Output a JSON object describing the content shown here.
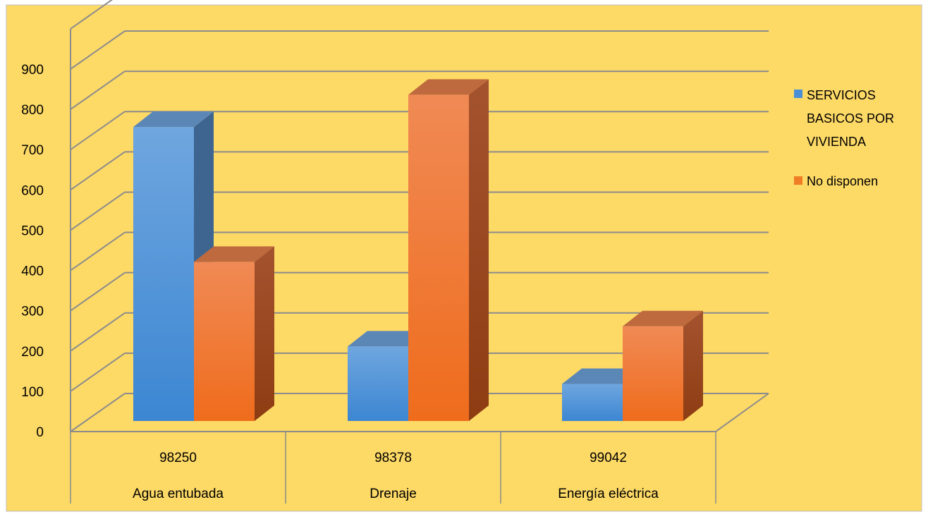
{
  "chart_data": {
    "type": "bar",
    "style": "3d-clustered-column",
    "title": "",
    "xlabel": "",
    "ylabel": "",
    "ylim": [
      0,
      900
    ],
    "yticks": [
      0,
      100,
      200,
      300,
      400,
      500,
      600,
      700,
      800,
      900
    ],
    "grid": true,
    "legend_position": "right",
    "category_levels": [
      [
        "98250",
        "98378",
        "99042"
      ],
      [
        "Agua entubada",
        "Drenaje",
        "Energía eléctrica"
      ]
    ],
    "categories": [
      "98250 / Agua entubada",
      "98378 / Drenaje",
      "99042 / Energía eléctrica"
    ],
    "series": [
      {
        "name": "SERVICIOS BASICOS POR VIVIENDA",
        "values": [
          730,
          185,
          92
        ],
        "color": "#4A8FD6"
      },
      {
        "name": "No disponen",
        "values": [
          395,
          810,
          235
        ],
        "color": "#F07D26"
      }
    ],
    "background_color": "#FDD966"
  },
  "legend": {
    "series1_lines": [
      "SERVICIOS",
      "BASICOS POR",
      "VIVIENDA"
    ],
    "series2_lines": [
      "No disponen"
    ]
  }
}
